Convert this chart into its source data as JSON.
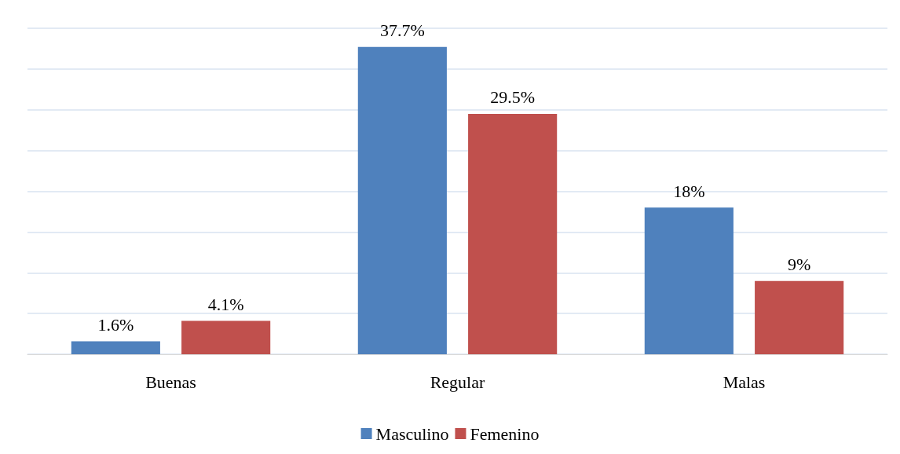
{
  "chart_data": {
    "type": "bar",
    "categories": [
      "Buenas",
      "Regular",
      "Malas"
    ],
    "series": [
      {
        "name": "Masculino",
        "color": "#4f81bd",
        "values": [
          1.6,
          37.7,
          18
        ],
        "value_labels": [
          "1.6%",
          "37.7%",
          "18%"
        ]
      },
      {
        "name": "Femenino",
        "color": "#c0504d",
        "values": [
          4.1,
          29.5,
          9
        ],
        "value_labels": [
          "4.1%",
          "29.5%",
          "9%"
        ]
      }
    ],
    "ylim": [
      0,
      40
    ],
    "yticks": [
      {
        "value": 0,
        "label": null
      },
      {
        "value": 5,
        "label": null
      },
      {
        "value": 10,
        "label": null
      },
      {
        "value": 15,
        "label": null
      },
      {
        "value": 20,
        "label": null
      },
      {
        "value": 25,
        "label": null
      },
      {
        "value": 30,
        "label": null
      },
      {
        "value": 35,
        "label": null
      },
      {
        "value": 40,
        "label": null
      }
    ],
    "tick_labels": "x",
    "grid": "y",
    "legend": "bottom"
  }
}
